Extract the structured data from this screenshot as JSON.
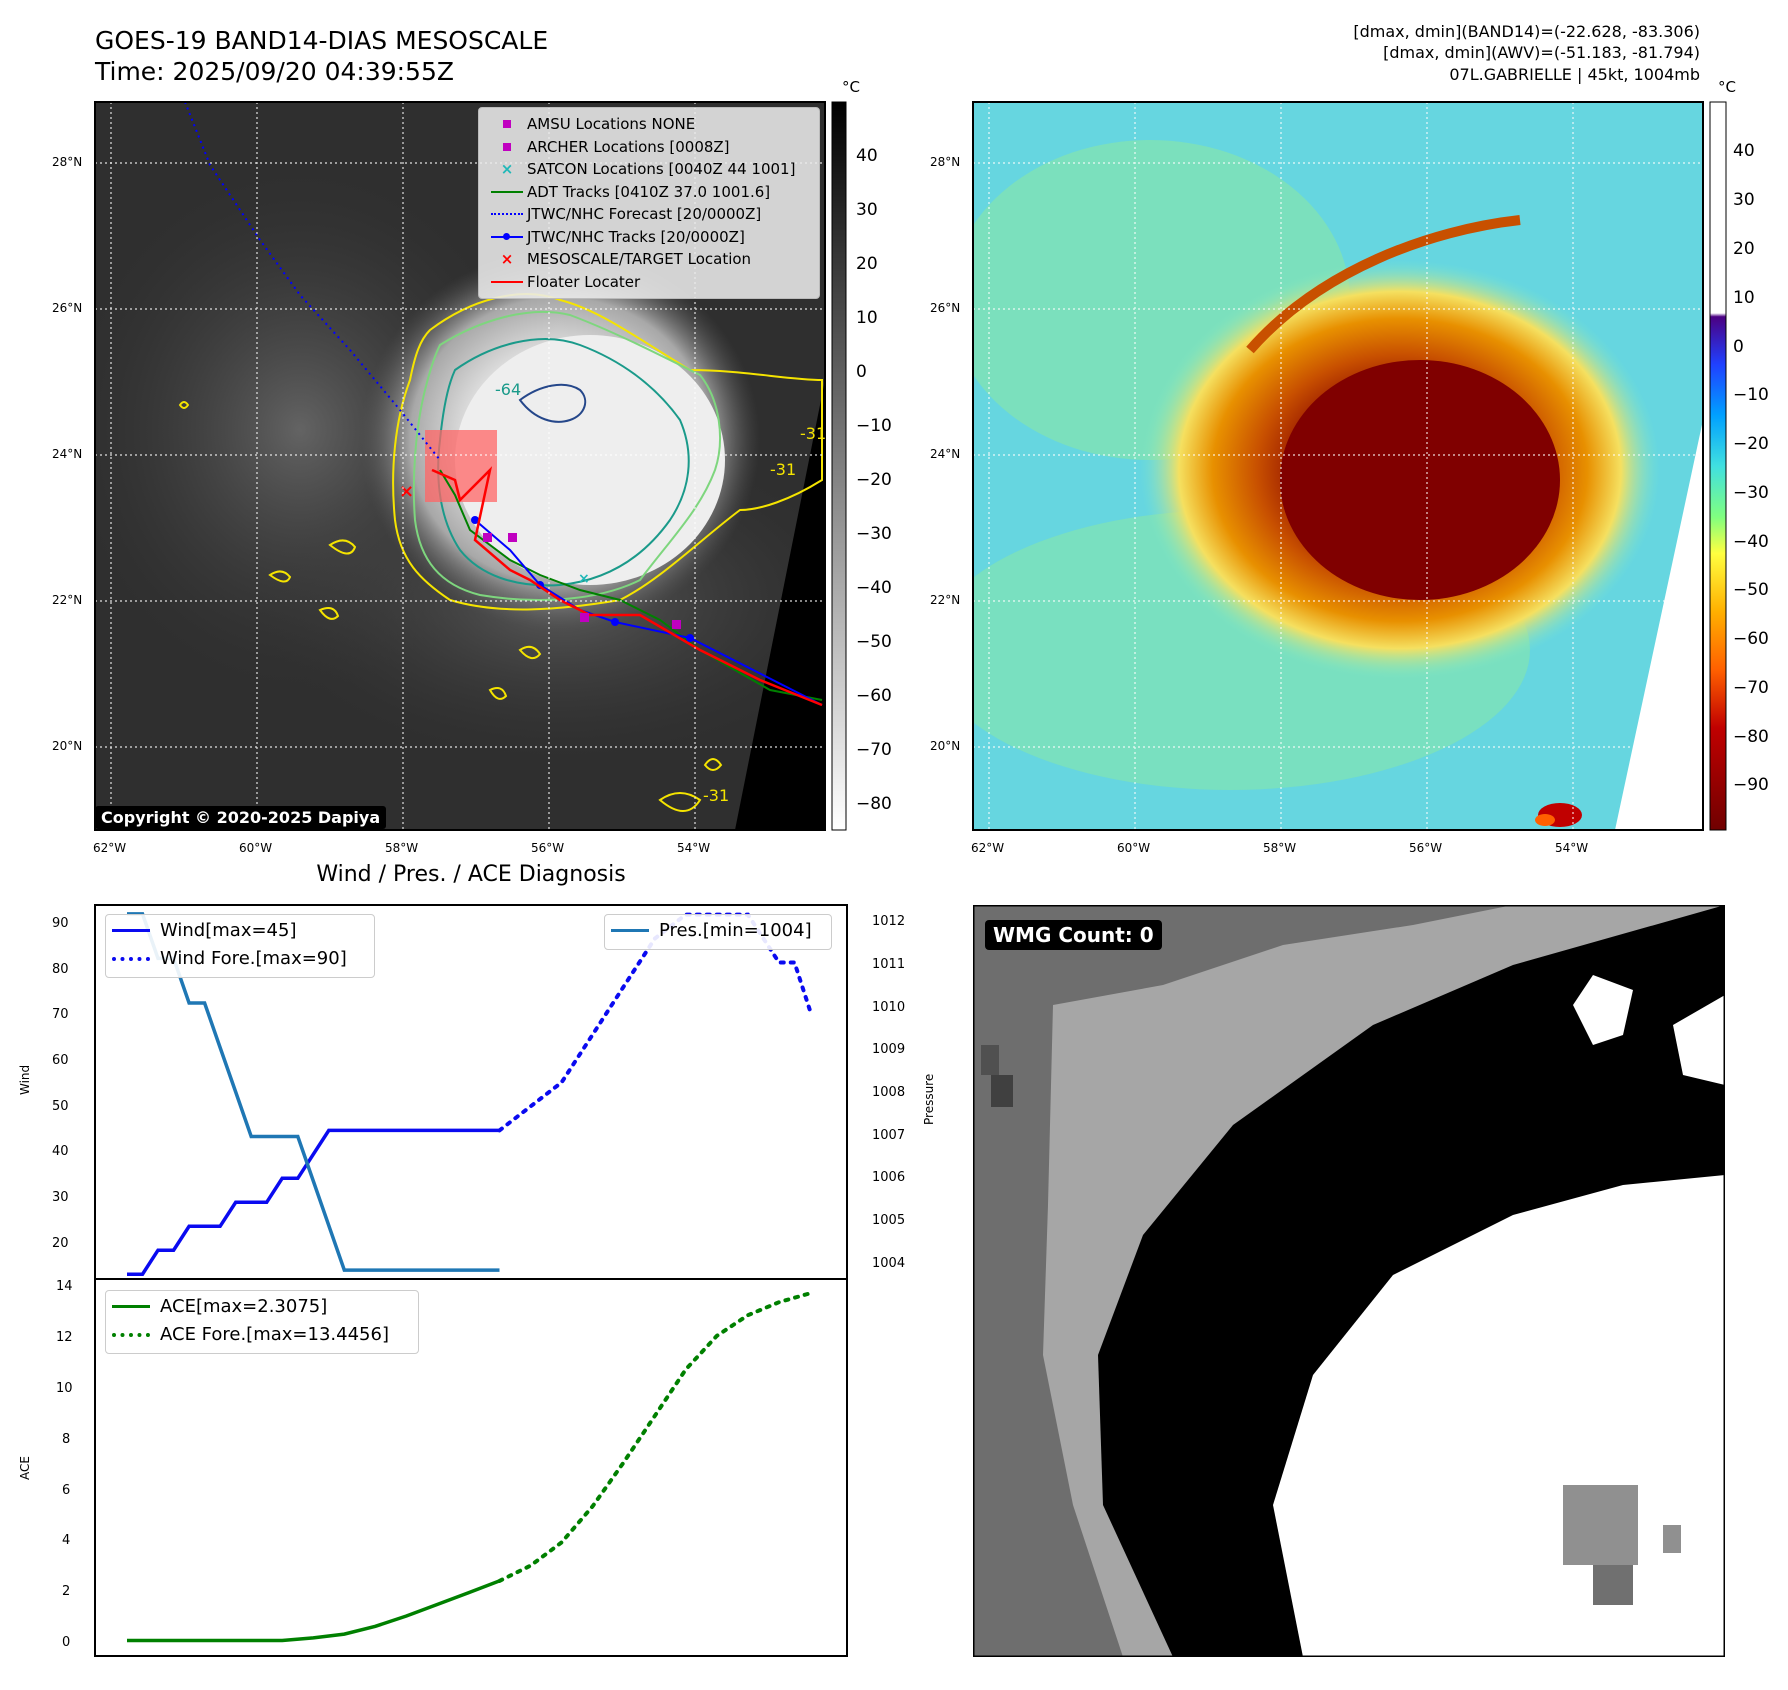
{
  "header": {
    "title": "GOES-19 BAND14-DIAS MESOSCALE",
    "time": "Time: 2025/09/20 04:39:55Z",
    "info_line1": "[dmax, dmin](BAND14)=(-22.628, -83.306)",
    "info_line2": "[dmax, dmin](AWV)=(-51.183, -81.794)",
    "info_line3": "07L.GABRIELLE | 45kt, 1004mb"
  },
  "map_axes": {
    "lat_labels": [
      "28°N",
      "26°N",
      "24°N",
      "22°N",
      "20°N"
    ],
    "lon_labels": [
      "62°W",
      "60°W",
      "58°W",
      "56°W",
      "54°W"
    ]
  },
  "colorbar_left": {
    "unit": "°C",
    "ticks": [
      "40",
      "30",
      "20",
      "10",
      "0",
      "−10",
      "−20",
      "−30",
      "−40",
      "−50",
      "−60",
      "−70",
      "−80"
    ]
  },
  "colorbar_right": {
    "unit": "°C",
    "ticks": [
      "40",
      "30",
      "20",
      "10",
      "0",
      "−10",
      "−20",
      "−30",
      "−40",
      "−50",
      "−60",
      "−70",
      "−80",
      "−90"
    ]
  },
  "contour_labels": [
    "-64",
    "-31",
    "-31",
    "-31",
    "-31"
  ],
  "legend": {
    "items": [
      {
        "label": "AMSU Locations NONE",
        "symbol": "square",
        "color": "#c000c0"
      },
      {
        "label": "ARCHER Locations [0008Z]",
        "symbol": "square",
        "color": "#c000c0"
      },
      {
        "label": "SATCON Locations [0040Z 44 1001]",
        "symbol": "x",
        "color": "#20b8b8"
      },
      {
        "label": "ADT Tracks [0410Z 37.0 1001.6]",
        "symbol": "line",
        "color": "#008000"
      },
      {
        "label": "JTWC/NHC Forecast [20/0000Z]",
        "symbol": "dotted",
        "color": "#0000ff"
      },
      {
        "label": "JTWC/NHC Tracks [20/0000Z]",
        "symbol": "line-dot",
        "color": "#0000ff"
      },
      {
        "label": "MESOSCALE/TARGET Location",
        "symbol": "x",
        "color": "#ff0000"
      },
      {
        "label": "Floater Locater",
        "symbol": "line",
        "color": "#ff0000"
      }
    ]
  },
  "copyright": "Copyright © 2020-2025 Dapiya",
  "wmg": {
    "label": "WMG Count: 0"
  },
  "diagnosis": {
    "title": "Wind / Pres. / ACE Diagnosis",
    "wind_axis_label": "Wind",
    "pressure_axis_label": "Pressure",
    "ace_axis_label": "ACE",
    "wind_ticks": [
      "90",
      "80",
      "70",
      "60",
      "50",
      "40",
      "30",
      "20"
    ],
    "pressure_ticks": [
      "1012",
      "1011",
      "1010",
      "1009",
      "1008",
      "1007",
      "1006",
      "1005",
      "1004"
    ],
    "ace_ticks": [
      "14",
      "12",
      "10",
      "8",
      "6",
      "4",
      "2",
      "0"
    ],
    "legend_wind": "Wind[max=45]",
    "legend_wind_fore": "Wind Fore.[max=90]",
    "legend_pres": "Pres.[min=1004]",
    "legend_ace": "ACE[max=2.3075]",
    "legend_ace_fore": "ACE Fore.[max=13.4456]"
  },
  "colors": {
    "wind": "#0a0af0",
    "pressure": "#1f77b4",
    "ace": "#008000",
    "floater": "#ff0000",
    "contour_yellow": "#f5e400",
    "contour_green": "#7ed67e",
    "contour_teal": "#1a9a8a"
  },
  "chart_data": [
    {
      "type": "line",
      "title": "Wind / Pres. / ACE Diagnosis",
      "ylabel": "Wind",
      "ylim": [
        14,
        92
      ],
      "y2label": "Pressure",
      "y2lim": [
        1003.8,
        1012.2
      ],
      "series": [
        {
          "name": "Wind[max=45]",
          "axis": "left",
          "style": "solid",
          "x": [
            0,
            1,
            2,
            3,
            4,
            5,
            6,
            7,
            8,
            9,
            10,
            11,
            12,
            13,
            14,
            15,
            16,
            17,
            18,
            19,
            20,
            21,
            22,
            23,
            24
          ],
          "values": [
            15,
            15,
            20,
            20,
            25,
            25,
            25,
            30,
            30,
            30,
            35,
            35,
            40,
            45,
            45,
            45,
            45,
            45,
            45,
            45,
            45,
            45,
            45,
            45,
            45
          ]
        },
        {
          "name": "Wind Fore.[max=90]",
          "axis": "left",
          "style": "dotted",
          "x": [
            24,
            26,
            28,
            30,
            32,
            34,
            36,
            38,
            40,
            42,
            43,
            44
          ],
          "values": [
            45,
            50,
            55,
            65,
            75,
            85,
            90,
            90,
            90,
            80,
            80,
            70
          ]
        },
        {
          "name": "Pres.[min=1004]",
          "axis": "right",
          "style": "solid",
          "x": [
            0,
            1,
            2,
            3,
            4,
            5,
            6,
            7,
            8,
            9,
            10,
            11,
            12,
            13,
            14,
            15,
            16,
            17,
            18,
            19,
            20,
            21,
            22,
            23,
            24
          ],
          "values": [
            1012,
            1012,
            1011,
            1011,
            1010,
            1010,
            1009,
            1008,
            1007,
            1007,
            1007,
            1007,
            1006,
            1005,
            1004,
            1004,
            1004,
            1004,
            1004,
            1004,
            1004,
            1004,
            1004,
            1004,
            1004
          ]
        }
      ]
    },
    {
      "type": "line",
      "ylabel": "ACE",
      "ylim": [
        -0.6,
        14
      ],
      "series": [
        {
          "name": "ACE[max=2.3075]",
          "style": "solid",
          "x": [
            0,
            2,
            4,
            6,
            8,
            10,
            12,
            14,
            16,
            18,
            20,
            22,
            24
          ],
          "values": [
            0,
            0,
            0,
            0,
            0,
            0,
            0.1,
            0.25,
            0.55,
            0.95,
            1.4,
            1.85,
            2.3075
          ]
        },
        {
          "name": "ACE Fore.[max=13.4456]",
          "style": "dotted",
          "x": [
            24,
            26,
            28,
            30,
            32,
            34,
            36,
            38,
            40,
            42,
            44
          ],
          "values": [
            2.3075,
            2.9,
            3.8,
            5.2,
            6.9,
            8.7,
            10.5,
            11.8,
            12.6,
            13.1,
            13.4456
          ]
        }
      ]
    }
  ]
}
